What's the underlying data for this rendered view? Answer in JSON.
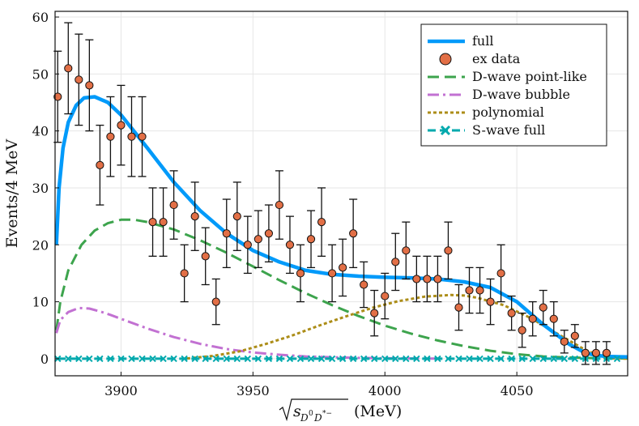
{
  "chart_data": {
    "type": "scatter",
    "xlabel_prefix": "",
    "xlabel_sub": "D",
    "xlabel_sub_sup": "0",
    "xlabel_sub2": "D",
    "xlabel_sub2_sup": "*−",
    "xlabel_unit": "(MeV)",
    "ylabel": "Events/4 MeV",
    "xlim": [
      3875,
      4092
    ],
    "ylim": [
      -3,
      61
    ],
    "x_ticks": [
      3900,
      3950,
      4000,
      4050
    ],
    "y_ticks": [
      0,
      10,
      20,
      30,
      40,
      50,
      60
    ],
    "grid": true,
    "legend_position": "top-right",
    "legend": [
      "full",
      "ex data",
      "D-wave point-like",
      "D-wave bubble",
      "polynomial",
      "S-wave full"
    ],
    "colors": {
      "full": "#009AFA",
      "data": "#E26F46",
      "dwave_point": "#3DA44D",
      "dwave_bubble": "#C271D2",
      "polynomial": "#AC8D18",
      "swave": "#00A9AD"
    },
    "series": [
      {
        "name": "ex data",
        "x": [
          3876,
          3880,
          3884,
          3888,
          3892,
          3896,
          3900,
          3904,
          3908,
          3912,
          3916,
          3920,
          3924,
          3928,
          3932,
          3936,
          3940,
          3944,
          3948,
          3952,
          3956,
          3960,
          3964,
          3968,
          3972,
          3976,
          3980,
          3984,
          3988,
          3992,
          3996,
          4000,
          4004,
          4008,
          4012,
          4016,
          4020,
          4024,
          4028,
          4032,
          4036,
          4040,
          4044,
          4048,
          4052,
          4056,
          4060,
          4064,
          4068,
          4072,
          4076,
          4080,
          4084
        ],
        "y": [
          46,
          51,
          49,
          48,
          34,
          39,
          41,
          39,
          39,
          24,
          24,
          27,
          15,
          25,
          18,
          10,
          22,
          25,
          20,
          21,
          22,
          27,
          20,
          15,
          21,
          24,
          15,
          16,
          22,
          13,
          8,
          11,
          17,
          19,
          14,
          14,
          14,
          19,
          9,
          12,
          12,
          10,
          15,
          8,
          5,
          7,
          9,
          7,
          3,
          4,
          1,
          1,
          1
        ],
        "err": [
          8,
          8,
          8,
          8,
          7,
          7,
          7,
          7,
          7,
          6,
          6,
          6,
          5,
          6,
          5,
          4,
          6,
          6,
          5,
          5,
          5,
          6,
          5,
          5,
          5,
          6,
          5,
          5,
          6,
          4,
          4,
          4,
          5,
          5,
          4,
          4,
          4,
          5,
          4,
          4,
          4,
          4,
          5,
          3,
          3,
          3,
          3,
          3,
          2,
          2,
          2,
          2,
          2
        ]
      },
      {
        "name": "full",
        "x": [
          3875.5,
          3876.5,
          3878,
          3880,
          3883,
          3886,
          3890,
          3895,
          3900,
          3910,
          3920,
          3930,
          3940,
          3950,
          3960,
          3970,
          3980,
          3990,
          4000,
          4010,
          4020,
          4030,
          4040,
          4050,
          4060,
          4070,
          4076,
          4080,
          4084,
          4092
        ],
        "y": [
          20,
          30,
          37,
          41.5,
          44.5,
          45.8,
          46,
          45,
          42.8,
          37,
          31,
          26,
          22,
          19,
          17,
          15.5,
          14.8,
          14.5,
          14.3,
          14.2,
          14,
          13.5,
          12.5,
          10,
          6,
          2.5,
          1,
          0.6,
          0.4,
          0.3
        ]
      },
      {
        "name": "D-wave point-like",
        "x": [
          3875.5,
          3877,
          3880,
          3885,
          3890,
          3895,
          3900,
          3905,
          3910,
          3920,
          3930,
          3940,
          3950,
          3960,
          3970,
          3980,
          3990,
          4000,
          4010,
          4020,
          4030,
          4040,
          4050,
          4060,
          4070,
          4080,
          4092
        ],
        "y": [
          5,
          10,
          15.5,
          20,
          22.5,
          23.8,
          24.4,
          24.4,
          24,
          22.7,
          20.8,
          18.6,
          16.2,
          13.8,
          11.5,
          9.4,
          7.5,
          5.8,
          4.4,
          3.2,
          2.2,
          1.4,
          0.8,
          0.4,
          0.2,
          0.1,
          0.05
        ]
      },
      {
        "name": "D-wave bubble",
        "x": [
          3875.5,
          3877,
          3880,
          3884,
          3888,
          3892,
          3896,
          3900,
          3910,
          3920,
          3930,
          3940,
          3950,
          3960,
          3970,
          3980,
          3990,
          4000,
          4010,
          4020
        ],
        "y": [
          4.5,
          6.8,
          8.2,
          8.9,
          8.8,
          8.3,
          7.7,
          7.0,
          5.3,
          3.8,
          2.6,
          1.7,
          1.1,
          0.7,
          0.4,
          0.25,
          0.15,
          0.08,
          0.04,
          0.02
        ]
      },
      {
        "name": "polynomial",
        "x": [
          3925,
          3935,
          3945,
          3955,
          3965,
          3975,
          3985,
          3995,
          4005,
          4015,
          4025,
          4030,
          4035,
          4045,
          4055,
          4065,
          4075,
          4080,
          4085,
          4092
        ],
        "y": [
          0.05,
          0.5,
          1.3,
          2.6,
          4.1,
          5.8,
          7.4,
          8.9,
          10.1,
          10.9,
          11.2,
          11.1,
          10.7,
          9.4,
          7.2,
          4.5,
          1.8,
          0.7,
          0.1,
          0
        ]
      },
      {
        "name": "S-wave full",
        "x": [
          3876,
          3880,
          3884,
          3888,
          3892,
          3896,
          3900,
          3904,
          3908,
          3912,
          3916,
          3920,
          3924,
          3928,
          3932,
          3936,
          3940,
          3944,
          3948,
          3952,
          3956,
          3960,
          3964,
          3968,
          3972,
          3976,
          3980,
          3984,
          3988,
          3992,
          3996,
          4000,
          4004,
          4008,
          4012,
          4016,
          4020,
          4024,
          4028,
          4032,
          4036,
          4040,
          4044,
          4048,
          4052,
          4056,
          4060,
          4064,
          4068,
          4072,
          4076,
          4080,
          4084,
          4088
        ],
        "y": [
          0,
          0,
          0,
          0,
          0,
          0,
          0,
          0,
          0,
          0,
          0,
          0,
          0,
          0,
          0,
          0,
          0,
          0,
          0,
          0,
          0,
          0,
          0,
          0,
          0,
          0,
          0,
          0,
          0,
          0,
          0,
          0,
          0,
          0,
          0,
          0,
          0,
          0,
          0,
          0,
          0,
          0,
          0,
          0,
          0,
          0,
          0,
          0,
          0,
          0,
          0,
          0,
          0,
          0
        ]
      }
    ]
  }
}
